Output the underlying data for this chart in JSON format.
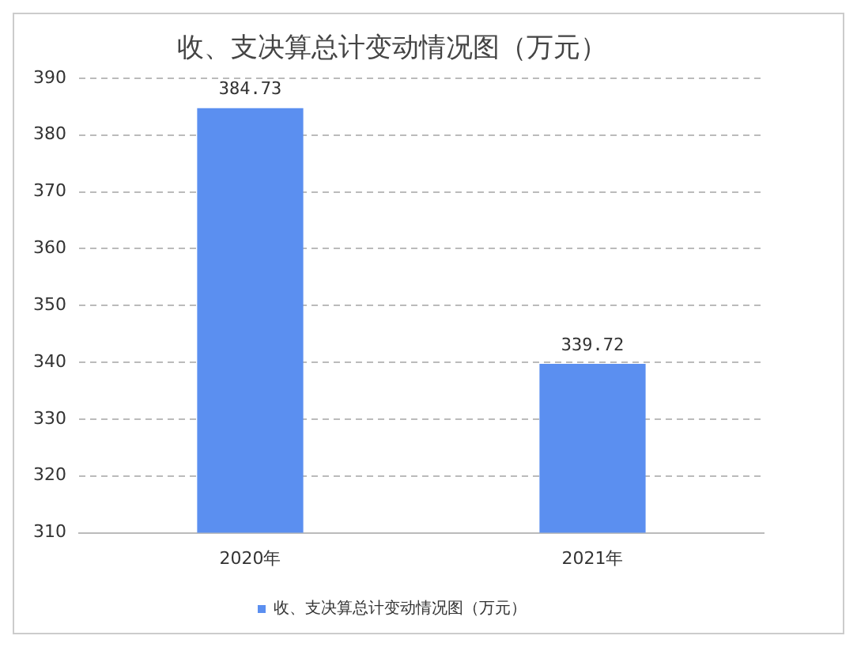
{
  "chart_data": {
    "type": "bar",
    "title": "收、支决算总计变动情况图（万元）",
    "categories": [
      "2020年",
      "2021年"
    ],
    "series": [
      {
        "name": "收、支决算总计变动情况图（万元）",
        "color": "#5b8ff0",
        "values": [
          384.73,
          339.72
        ]
      }
    ],
    "ylim": [
      310,
      390
    ],
    "yticks": [
      310,
      320,
      330,
      340,
      350,
      360,
      370,
      380,
      390
    ],
    "grid": "y",
    "legend": "bottom",
    "data_labels": true
  }
}
